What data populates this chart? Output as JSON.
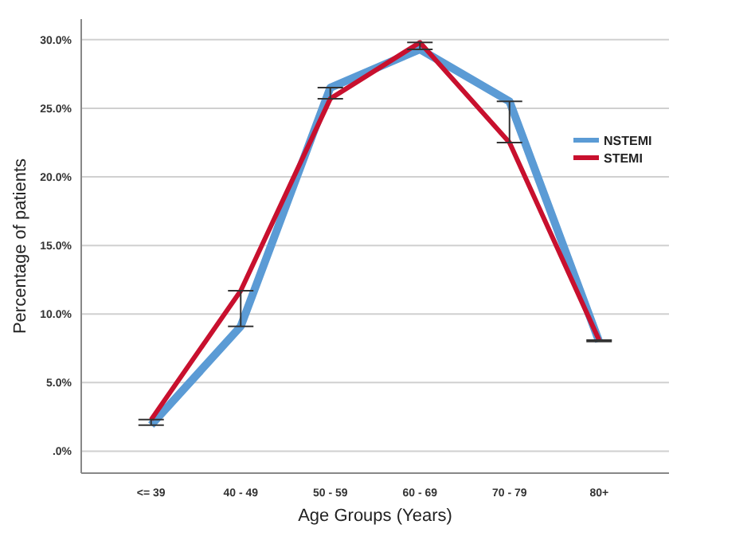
{
  "chart_data": {
    "type": "line",
    "xlabel": "Age Groups (Years)",
    "ylabel": "Percentage of patients",
    "categories": [
      "<= 39",
      "40 - 49",
      "50 - 59",
      "60 - 69",
      "70 - 79",
      "80+"
    ],
    "series": [
      {
        "name": "NSTEMI",
        "color": "#5b9bd5",
        "values": [
          1.9,
          9.1,
          26.5,
          29.3,
          25.5,
          8.0
        ],
        "errors": [
          [
            1.9,
            2.3
          ],
          [
            9.1,
            11.7
          ],
          [
            25.7,
            26.5
          ],
          [
            29.3,
            29.8
          ],
          [
            22.5,
            25.5
          ],
          [
            8.0,
            8.1
          ]
        ]
      },
      {
        "name": "STEMI",
        "color": "#c8102e",
        "values": [
          2.3,
          11.7,
          25.7,
          29.8,
          22.5,
          8.1
        ]
      }
    ],
    "ylim": [
      -1.6,
      31.5
    ],
    "yticks": [
      {
        "value": 0,
        "label": ".0%"
      },
      {
        "value": 5,
        "label": "5.0%"
      },
      {
        "value": 10,
        "label": "10.0%"
      },
      {
        "value": 15,
        "label": "15.0%"
      },
      {
        "value": 20,
        "label": "20.0%"
      },
      {
        "value": 25,
        "label": "25.0%"
      },
      {
        "value": 30,
        "label": "30.0%"
      }
    ],
    "grid": "y",
    "legend": "right",
    "marker": "none"
  }
}
